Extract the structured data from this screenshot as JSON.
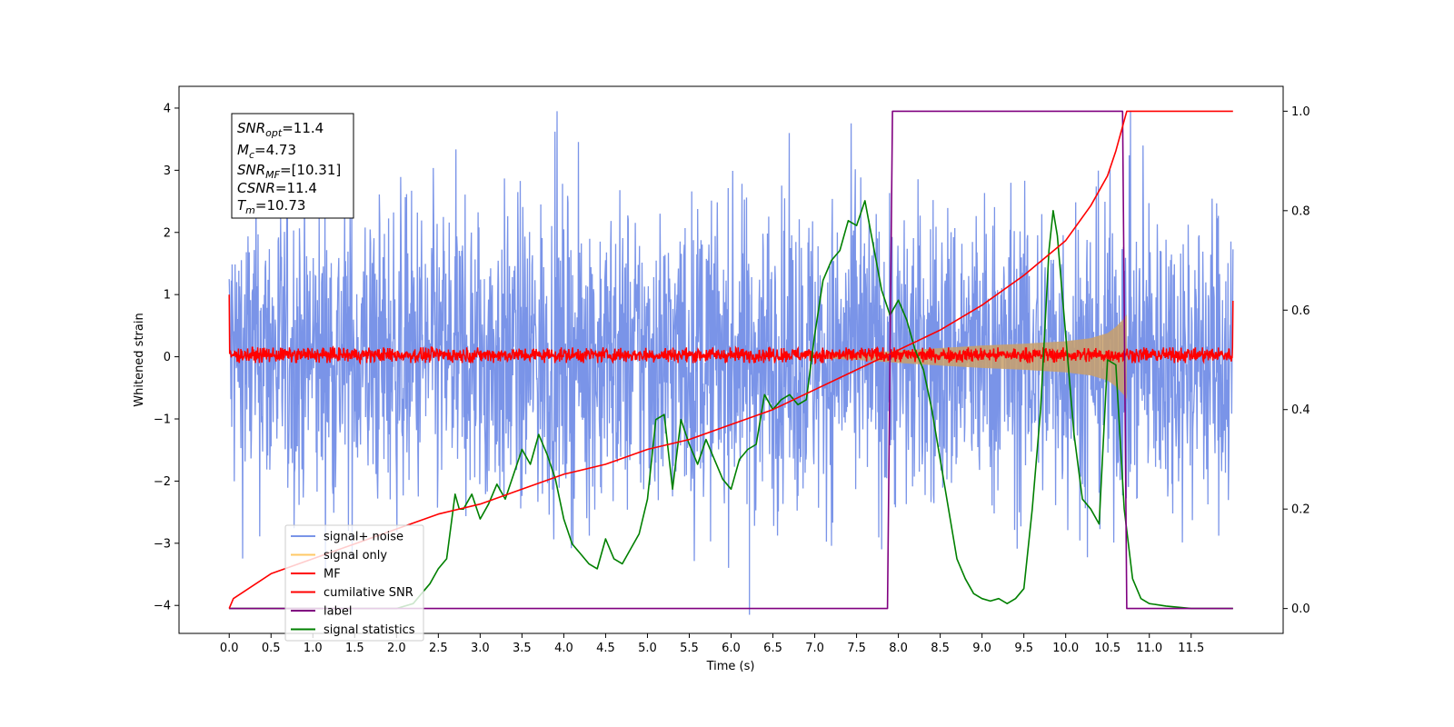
{
  "chart_data": {
    "type": "line",
    "xlabel": "Time (s)",
    "ylabel": "Whitened strain",
    "xlim": [
      -0.6,
      12.6
    ],
    "ylim": [
      -4.45,
      4.35
    ],
    "y2lim": [
      -0.05,
      1.05
    ],
    "x_ticks": [
      0.0,
      0.5,
      1.0,
      1.5,
      2.0,
      2.5,
      3.0,
      3.5,
      4.0,
      4.5,
      5.0,
      5.5,
      6.0,
      6.5,
      7.0,
      7.5,
      8.0,
      8.5,
      9.0,
      9.5,
      10.0,
      10.5,
      11.0,
      11.5
    ],
    "x_tick_labels": [
      "0.0",
      "0.5",
      "1.0",
      "1.5",
      "2.0",
      "2.5",
      "3.0",
      "3.5",
      "4.0",
      "4.5",
      "5.0",
      "5.5",
      "6.0",
      "6.5",
      "7.0",
      "7.5",
      "8.0",
      "8.5",
      "9.0",
      "9.5",
      "10.0",
      "10.5",
      "11.0",
      "11.5"
    ],
    "y_ticks": [
      -4,
      -3,
      -2,
      -1,
      0,
      1,
      2,
      3,
      4
    ],
    "y_tick_labels": [
      "−4",
      "−3",
      "−2",
      "−1",
      "0",
      "1",
      "2",
      "3",
      "4"
    ],
    "y2_ticks": [
      0.0,
      0.2,
      0.4,
      0.6,
      0.8,
      1.0
    ],
    "y2_tick_labels": [
      "0.0",
      "0.2",
      "0.4",
      "0.6",
      "0.8",
      "1.0"
    ],
    "grid": false,
    "legend_position": "lower-left",
    "annotation": {
      "snr_opt": "=11.4",
      "mc": "=4.73",
      "snr_mf": "=[10.31]",
      "csnr": "=11.4",
      "tm": "=10.73"
    },
    "series": [
      {
        "name": "signal+ noise",
        "color": "#7a94e8",
        "axis": "left",
        "kind": "noise-band",
        "x_range": [
          0.0,
          12.0
        ],
        "envelope_upper": 2.3,
        "envelope_lower": -2.3,
        "peak_max": 3.95,
        "peak_min": -4.15
      },
      {
        "name": "signal only",
        "color": "#ffc966",
        "axis": "left",
        "kind": "chirp",
        "x": [
          7.0,
          7.5,
          8.0,
          8.5,
          9.0,
          9.5,
          10.0,
          10.3,
          10.5,
          10.6,
          10.7,
          10.73
        ],
        "amplitude": [
          0.02,
          0.05,
          0.1,
          0.14,
          0.18,
          0.21,
          0.25,
          0.3,
          0.38,
          0.48,
          0.62,
          0.68
        ]
      },
      {
        "name": "MF",
        "color": "#ff0000",
        "axis": "left",
        "kind": "noise-band",
        "x_range": [
          0.0,
          12.0
        ],
        "envelope_upper": 0.15,
        "envelope_lower": -0.1,
        "start_value": 1.0,
        "end_value": 0.9
      },
      {
        "name": "cumilative SNR",
        "color": "#ff0000",
        "axis": "right",
        "x": [
          0.0,
          0.05,
          0.5,
          1.0,
          1.5,
          2.0,
          2.5,
          3.0,
          3.5,
          4.0,
          4.5,
          5.0,
          5.5,
          6.0,
          6.5,
          7.0,
          7.5,
          8.0,
          8.5,
          9.0,
          9.5,
          10.0,
          10.3,
          10.5,
          10.6,
          10.73,
          12.0
        ],
        "y": [
          0.0,
          0.02,
          0.07,
          0.1,
          0.13,
          0.16,
          0.19,
          0.21,
          0.24,
          0.27,
          0.29,
          0.32,
          0.34,
          0.37,
          0.4,
          0.44,
          0.48,
          0.52,
          0.56,
          0.61,
          0.67,
          0.74,
          0.81,
          0.87,
          0.92,
          1.0,
          1.0
        ]
      },
      {
        "name": "label",
        "color": "#800080",
        "axis": "right",
        "x": [
          0.0,
          7.87,
          7.93,
          10.68,
          10.73,
          12.0
        ],
        "y": [
          0.0,
          0.0,
          1.0,
          1.0,
          0.0,
          0.0
        ]
      },
      {
        "name": "signal statistics",
        "color": "#008000",
        "axis": "right",
        "x": [
          0.0,
          2.0,
          2.2,
          2.3,
          2.4,
          2.5,
          2.6,
          2.7,
          2.75,
          2.8,
          2.9,
          3.0,
          3.1,
          3.2,
          3.3,
          3.4,
          3.5,
          3.6,
          3.7,
          3.8,
          3.9,
          4.0,
          4.1,
          4.2,
          4.3,
          4.4,
          4.5,
          4.6,
          4.7,
          4.8,
          4.9,
          5.0,
          5.1,
          5.2,
          5.3,
          5.4,
          5.5,
          5.6,
          5.7,
          5.8,
          5.9,
          6.0,
          6.1,
          6.2,
          6.3,
          6.4,
          6.5,
          6.6,
          6.7,
          6.8,
          6.9,
          7.0,
          7.1,
          7.2,
          7.3,
          7.4,
          7.5,
          7.6,
          7.7,
          7.8,
          7.9,
          8.0,
          8.1,
          8.2,
          8.3,
          8.4,
          8.5,
          8.6,
          8.7,
          8.8,
          8.9,
          9.0,
          9.1,
          9.2,
          9.3,
          9.4,
          9.5,
          9.6,
          9.7,
          9.8,
          9.85,
          9.9,
          10.0,
          10.1,
          10.2,
          10.3,
          10.4,
          10.5,
          10.6,
          10.7,
          10.8,
          10.9,
          11.0,
          11.2,
          11.5,
          12.0
        ],
        "y": [
          0.0,
          0.0,
          0.01,
          0.03,
          0.05,
          0.08,
          0.1,
          0.23,
          0.2,
          0.2,
          0.23,
          0.18,
          0.21,
          0.25,
          0.22,
          0.27,
          0.32,
          0.29,
          0.35,
          0.31,
          0.26,
          0.18,
          0.13,
          0.11,
          0.09,
          0.08,
          0.14,
          0.1,
          0.09,
          0.12,
          0.15,
          0.22,
          0.38,
          0.39,
          0.24,
          0.38,
          0.33,
          0.29,
          0.34,
          0.3,
          0.26,
          0.24,
          0.3,
          0.32,
          0.33,
          0.43,
          0.4,
          0.42,
          0.43,
          0.41,
          0.42,
          0.55,
          0.66,
          0.7,
          0.72,
          0.78,
          0.77,
          0.82,
          0.73,
          0.64,
          0.59,
          0.62,
          0.58,
          0.52,
          0.48,
          0.4,
          0.3,
          0.2,
          0.1,
          0.06,
          0.03,
          0.02,
          0.015,
          0.02,
          0.01,
          0.02,
          0.04,
          0.2,
          0.4,
          0.72,
          0.8,
          0.75,
          0.55,
          0.35,
          0.22,
          0.2,
          0.17,
          0.5,
          0.49,
          0.2,
          0.06,
          0.02,
          0.01,
          0.005,
          0.0,
          0.0
        ]
      }
    ]
  }
}
